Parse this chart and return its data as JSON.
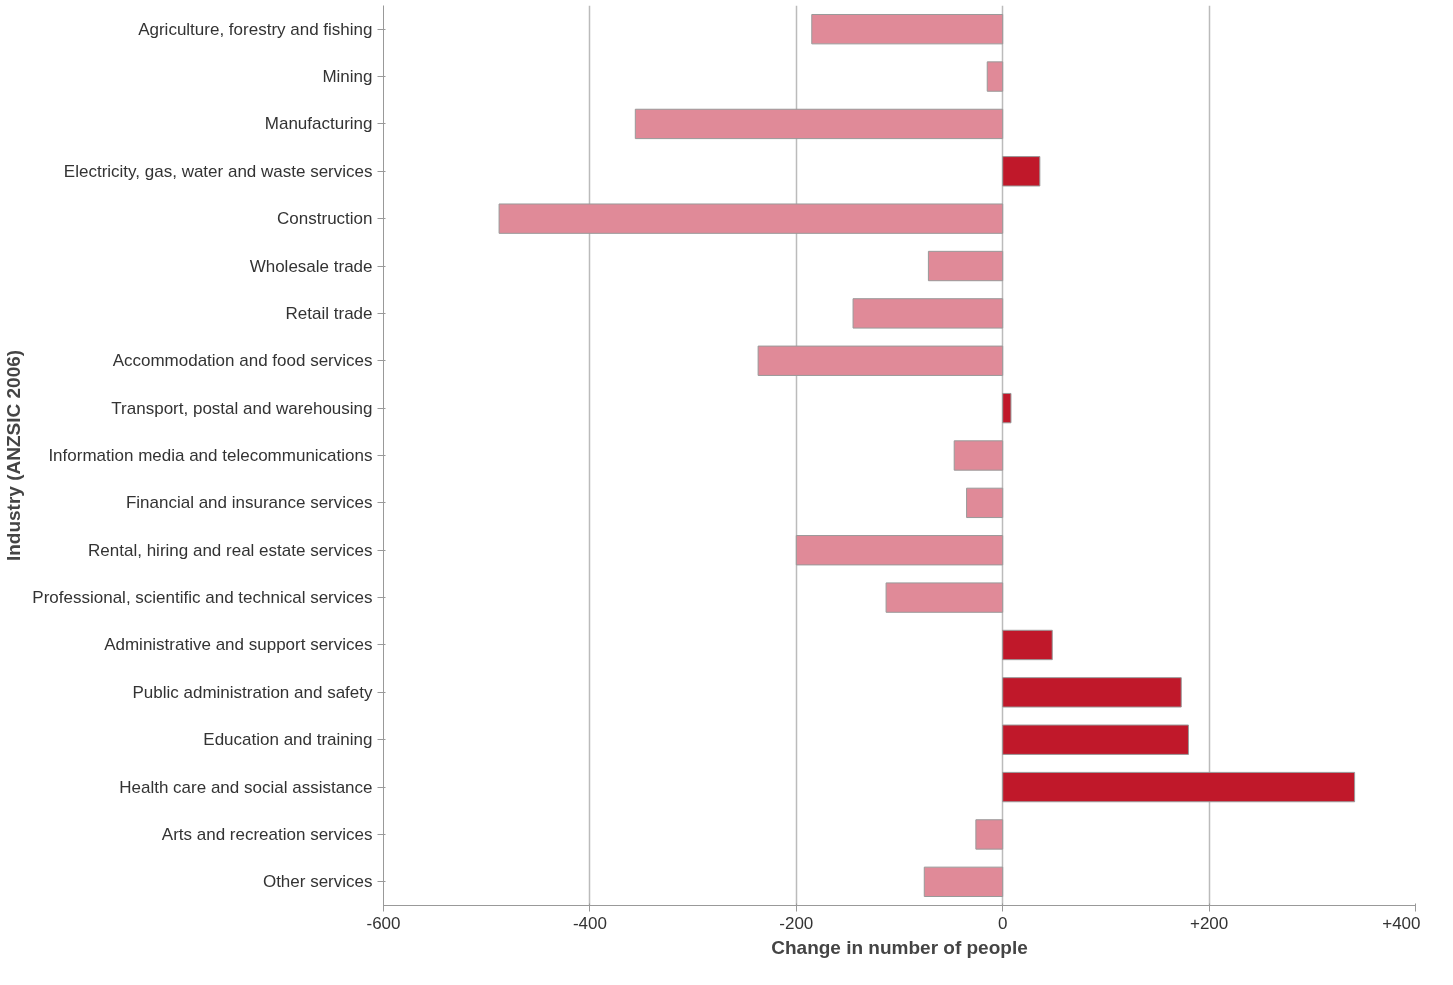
{
  "chart_data": {
    "type": "bar",
    "orientation": "horizontal",
    "xlabel": "Change in number of people",
    "ylabel": "Industry (ANZSIC 2006)",
    "categories": [
      "Agriculture, forestry and fishing",
      "Mining",
      "Manufacturing",
      "Electricity, gas, water and waste services",
      "Construction",
      "Wholesale trade",
      "Retail trade",
      "Accommodation and food services",
      "Transport, postal and warehousing",
      "Information media and telecommunications",
      "Financial and insurance services",
      "Rental, hiring and real estate services",
      "Professional, scientific and technical services",
      "Administrative and support services",
      "Public administration and safety",
      "Education and training",
      "Health care and social assistance",
      "Arts and recreation services",
      "Other services"
    ],
    "values": [
      -185,
      -15,
      -356,
      36,
      -488,
      -72,
      -145,
      -237,
      8,
      -47,
      -35,
      -200,
      -113,
      48,
      173,
      180,
      341,
      -26,
      -76
    ],
    "colors": [
      "#e08a98",
      "#e08a98",
      "#e08a98",
      "#c0182a",
      "#e08a98",
      "#e08a98",
      "#e08a98",
      "#e08a98",
      "#c0182a",
      "#e08a98",
      "#e08a98",
      "#e08a98",
      "#e08a98",
      "#c0182a",
      "#c0182a",
      "#c0182a",
      "#c0182a",
      "#e08a98",
      "#e08a98"
    ],
    "xlim": [
      -600,
      400
    ],
    "xticks": [
      {
        "value": -600,
        "label": "-600"
      },
      {
        "value": -400,
        "label": "-400"
      },
      {
        "value": -200,
        "label": "-200"
      },
      0,
      {
        "value": 200,
        "label": "+200"
      },
      {
        "value": 400,
        "label": "+400"
      }
    ],
    "grid": "x"
  }
}
